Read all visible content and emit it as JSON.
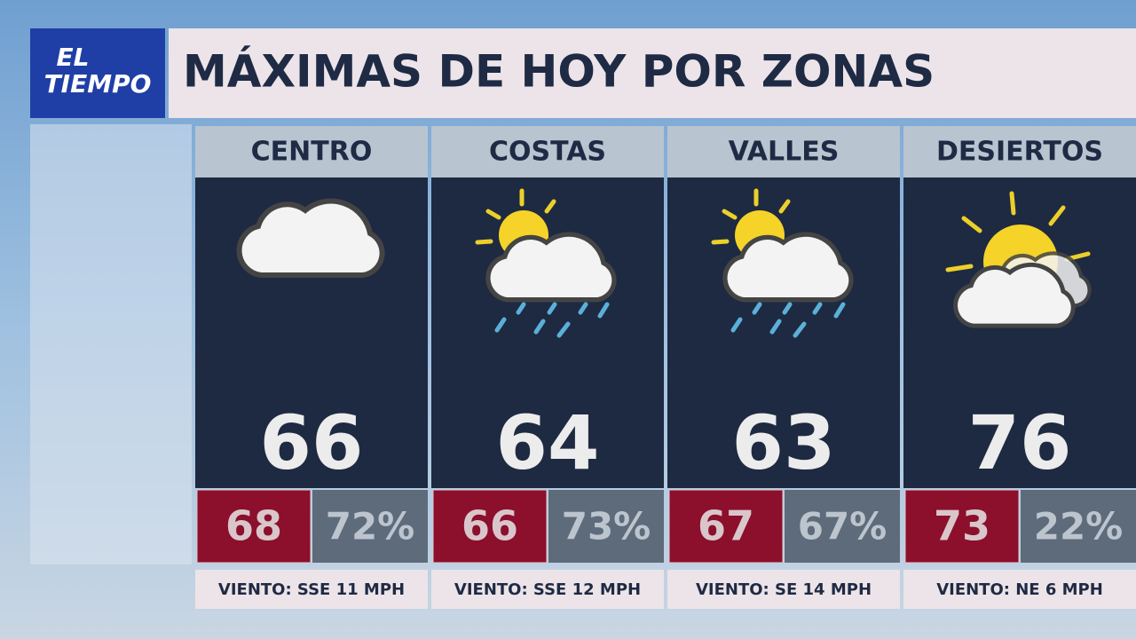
{
  "header": {
    "logo": [
      "EL",
      "TIEMPO"
    ],
    "title": "MÁXIMAS DE HOY POR ZONAS"
  },
  "zones": [
    {
      "name": "CENTRO",
      "high": 66,
      "feels": 68,
      "humidity": "72%",
      "wind": "VIENTO: SSE 11 MPH"
    },
    {
      "name": "COSTAS",
      "high": 64,
      "feels": 66,
      "humidity": "73%",
      "wind": "VIENTO: SSE 12 MPH"
    },
    {
      "name": "VALLES",
      "high": 63,
      "feels": 67,
      "humidity": "67%",
      "wind": "VIENTO: SE 14 MPH"
    },
    {
      "name": "DESIERTOS",
      "high": 76,
      "feels": 73,
      "humidity": "22%",
      "wind": "VIENTO: NE 6 MPH"
    }
  ]
}
